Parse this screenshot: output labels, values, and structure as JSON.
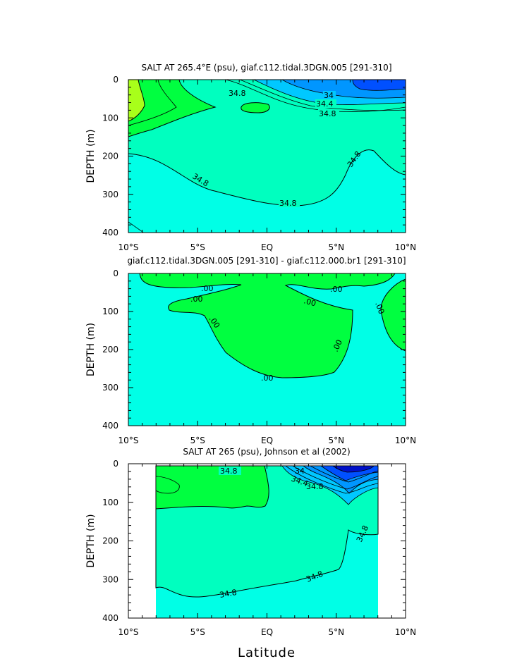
{
  "colors": {
    "bg_cyan": "#00ffe6",
    "mid_teal": "#00ffbf",
    "green": "#00ff40",
    "lime": "#a8ff1a",
    "blue1": "#00c8ff",
    "blue2": "#0096ff",
    "blue3": "#0050ff",
    "blue4": "#0010c8"
  },
  "chart_data": [
    {
      "type": "contour",
      "title": "SALT AT 265.4°E (psu), giaf.c112.tidal.3DGN.005 [291-310]",
      "ylabel": "DEPTH (m)",
      "xlabel": "",
      "x_ticks": [
        "10°S",
        "5°S",
        "EQ",
        "5°N",
        "10°N"
      ],
      "y_ticks": [
        "0",
        "100",
        "200",
        "300",
        "400"
      ],
      "xlim": [
        -10,
        10
      ],
      "ylim": [
        400,
        0
      ],
      "contour_labels": [
        "34.8",
        "34",
        "34.4",
        "34.8",
        "34.8",
        "34.8",
        "34.8"
      ]
    },
    {
      "type": "contour",
      "title": "giaf.c112.tidal.3DGN.005 [291-310] - giaf.c112.000.br1 [291-310]",
      "ylabel": "DEPTH (m)",
      "xlabel": "",
      "x_ticks": [
        "10°S",
        "5°S",
        "EQ",
        "5°N",
        "10°N"
      ],
      "y_ticks": [
        "0",
        "100",
        "200",
        "300",
        "400"
      ],
      "xlim": [
        -10,
        10
      ],
      "ylim": [
        400,
        0
      ],
      "contour_labels": [
        ".00",
        ".00",
        ".00",
        ".00",
        ".00",
        ".00",
        ".00",
        ".00"
      ]
    },
    {
      "type": "contour",
      "title": "SALT AT 265 (psu), Johnson et al (2002)",
      "ylabel": "DEPTH (m)",
      "xlabel": "Latitude",
      "x_ticks": [
        "10°S",
        "5°S",
        "EQ",
        "5°N",
        "10°N"
      ],
      "y_ticks": [
        "0",
        "100",
        "200",
        "300",
        "400"
      ],
      "xlim": [
        -10,
        10
      ],
      "ylim": [
        400,
        0
      ],
      "contour_labels": [
        "34.8",
        "34",
        "34.4",
        "34.8",
        "34.8",
        "34.8"
      ]
    }
  ]
}
